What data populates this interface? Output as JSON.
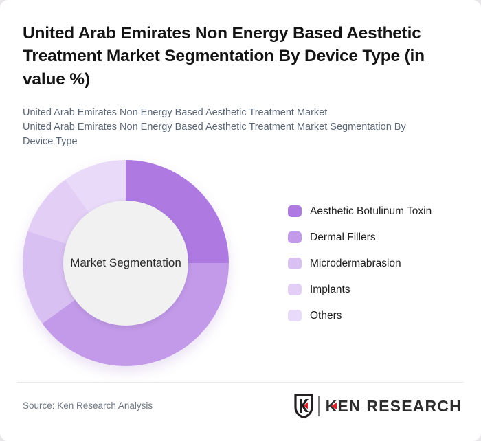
{
  "page": {
    "background": "#e9e6e9",
    "card_background": "#ffffff"
  },
  "header": {
    "title": "United Arab Emirates Non Energy Based Aesthetic Treatment Market Segmentation By Device Type (in value %)",
    "subtitle_line1": "United Arab Emirates Non Energy Based Aesthetic Treatment Market",
    "subtitle_line2": "United Arab Emirates Non Energy Based Aesthetic Treatment Market Segmentation By Device Type"
  },
  "chart_data": {
    "type": "pie",
    "variant": "donut",
    "title": "United Arab Emirates Non Energy Based Aesthetic Treatment Market Segmentation By Device Type (in value %)",
    "center_label": "Market Segmentation",
    "categories": [
      "Aesthetic Botulinum Toxin",
      "Dermal Fillers",
      "Microdermabrasion",
      "Implants",
      "Others"
    ],
    "values": [
      25,
      40,
      15,
      10,
      10
    ],
    "unit": "value %",
    "colors": [
      "#ae7ae2",
      "#c29ae9",
      "#d9c0f2",
      "#e3cff6",
      "#e9daf9"
    ],
    "start_angle_deg": 0,
    "direction": "clockwise",
    "inner_radius_pct": 60,
    "legend_position": "right",
    "hole_color": "#f2f1f2"
  },
  "footer": {
    "source": "Source: Ken Research Analysis",
    "logo": {
      "shield_letter": "K",
      "text_part1": "K",
      "text_part2": "EN RESEARCH",
      "brand_red": "#d9232a",
      "brand_dark": "#2d2d2d"
    }
  }
}
